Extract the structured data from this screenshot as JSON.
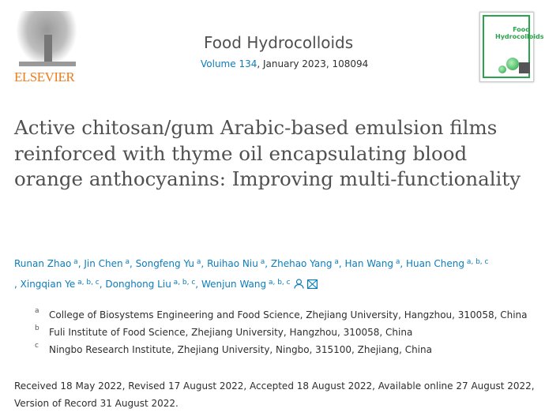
{
  "publisher": {
    "logo_text": "ELSEVIER",
    "color": "#f07c1c"
  },
  "journal": {
    "name": "Food Hydrocolloids",
    "volume_link": "Volume 134",
    "issue_rest": ", January 2023, 108094",
    "cover_title": "Food Hydrocolloids"
  },
  "article": {
    "title": "Active chitosan/gum Arabic-based emulsion films reinforced with thyme oil encapsulating blood orange anthocyanins: Improving multi-functionality",
    "authors": [
      {
        "name": "Runan Zhao",
        "aff": "a"
      },
      {
        "name": "Jin Chen",
        "aff": "a"
      },
      {
        "name": "Songfeng Yu",
        "aff": "a"
      },
      {
        "name": "Ruihao Niu",
        "aff": "a"
      },
      {
        "name": "Zhehao Yang",
        "aff": "a"
      },
      {
        "name": "Han Wang",
        "aff": "a"
      },
      {
        "name": "Huan Cheng",
        "aff": "a, b, c"
      },
      {
        "name": "Xingqian Ye",
        "aff": "a, b, c"
      },
      {
        "name": "Donghong Liu",
        "aff": "a, b, c"
      },
      {
        "name": "Wenjun Wang",
        "aff": "a, b, c"
      }
    ],
    "affiliations": [
      {
        "label": "a",
        "text": "College of Biosystems Engineering and Food Science, Zhejiang University, Hangzhou, 310058, China"
      },
      {
        "label": "b",
        "text": "Fuli Institute of Food Science, Zhejiang University, Hangzhou, 310058, China"
      },
      {
        "label": "c",
        "text": "Ningbo Research Institute, Zhejiang University, Ningbo, 315100, Zhejiang, China"
      }
    ],
    "dates": "Received 18 May 2022, Revised 17 August 2022, Accepted 18 August 2022, Available online 27 August 2022, Version of Record 31 August 2022."
  },
  "icons": [
    "person-icon",
    "envelope-icon"
  ],
  "colors": {
    "link": "#0c7dbb",
    "title": "#505050",
    "cover_green": "#2aa44a"
  }
}
